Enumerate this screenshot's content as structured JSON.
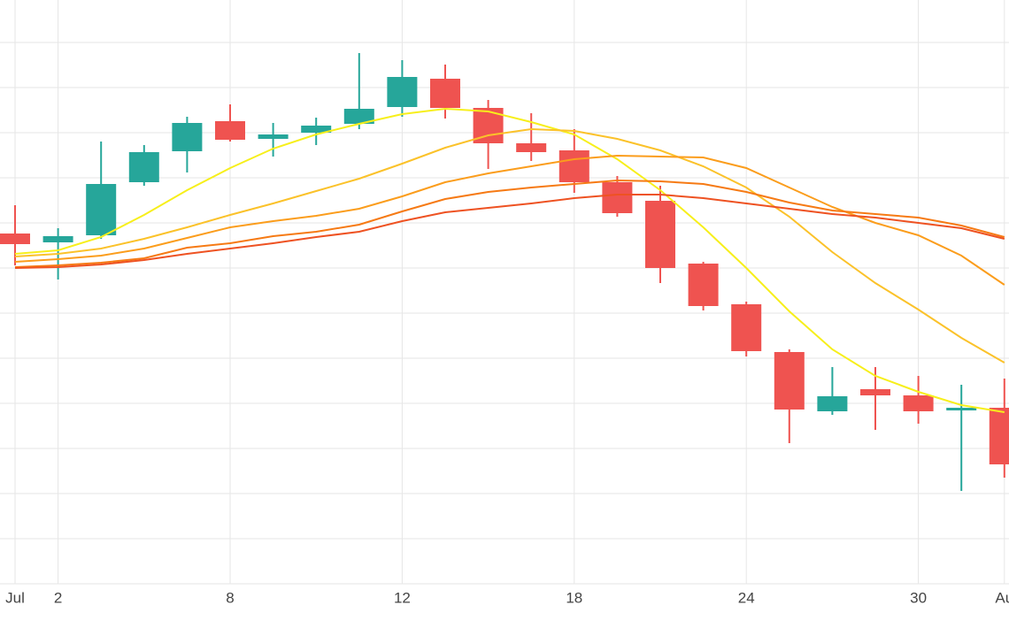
{
  "chart_data": {
    "type": "candlestick",
    "categories": [
      "Jul",
      null,
      null,
      null,
      null,
      null,
      null,
      null,
      null,
      null,
      null,
      null,
      null,
      null,
      null,
      null,
      null,
      null,
      null,
      null,
      null,
      null,
      null,
      "Au"
    ],
    "category_labels": {
      "1": "2",
      "5": "8",
      "9": "12",
      "13": "18",
      "17": "24",
      "21": "30"
    },
    "open": [
      396,
      386,
      394,
      454,
      489,
      523,
      503,
      510,
      520,
      539,
      571,
      538,
      498,
      490,
      454,
      433,
      362,
      316,
      262,
      195,
      220,
      213,
      196,
      199
    ],
    "high": [
      428,
      402,
      500,
      496,
      528,
      542,
      521,
      527,
      600,
      592,
      587,
      547,
      532,
      514,
      461,
      450,
      364,
      319,
      265,
      245,
      245,
      235,
      225,
      232
    ],
    "low": [
      360,
      344,
      390,
      450,
      465,
      500,
      483,
      496,
      514,
      528,
      526,
      469,
      478,
      442,
      415,
      340,
      309,
      257,
      159,
      191,
      174,
      181,
      105,
      120
    ],
    "close": [
      384,
      393,
      452,
      488,
      521,
      502,
      508,
      518,
      537,
      573,
      538,
      498,
      488,
      454,
      419,
      357,
      314,
      263,
      197,
      212,
      213,
      195,
      199,
      135
    ],
    "increasing_color": "#26a69a",
    "decreasing_color": "#ef5350",
    "series": [
      {
        "color": "#f7ef1b",
        "values": [
          373,
          377,
          392,
          417,
          445,
          470,
          492,
          508,
          520,
          531,
          537,
          534,
          522,
          508,
          480,
          445,
          403,
          357,
          308,
          265,
          235,
          217,
          202,
          194
        ]
      },
      {
        "color": "#fbc22a",
        "values": [
          370,
          373,
          379,
          390,
          403,
          417,
          430,
          444,
          458,
          475,
          493,
          507,
          514,
          512,
          503,
          490,
          472,
          448,
          415,
          375,
          340,
          310,
          278,
          250
        ]
      },
      {
        "color": "#fb9d1c",
        "values": [
          364,
          367,
          371,
          379,
          391,
          403,
          410,
          416,
          424,
          438,
          454,
          464,
          472,
          480,
          484,
          483,
          482,
          470,
          448,
          426,
          408,
          394,
          371,
          338
        ]
      },
      {
        "color": "#f67a14",
        "values": [
          358,
          360,
          363,
          368,
          380,
          385,
          393,
          398,
          406,
          421,
          435,
          443,
          448,
          452,
          456,
          455,
          452,
          443,
          431,
          422,
          418,
          414,
          405,
          392
        ]
      },
      {
        "color": "#ee5222",
        "values": [
          357,
          358,
          361,
          366,
          373,
          379,
          385,
          392,
          398,
          410,
          420,
          425,
          430,
          436,
          440,
          440,
          436,
          430,
          424,
          418,
          414,
          408,
          402,
          390
        ]
      }
    ],
    "ylim": [
      0,
      660
    ],
    "yticks": [
      51,
      102,
      153,
      204,
      255,
      306,
      357,
      408,
      459,
      510,
      561,
      612
    ],
    "grid": true
  }
}
